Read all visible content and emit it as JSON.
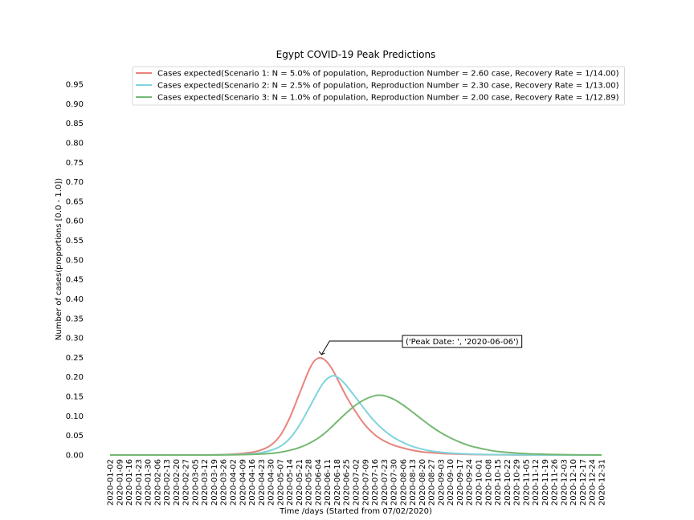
{
  "chart_data": {
    "type": "line",
    "title": "Egypt COVID-19 Peak Predictions",
    "xlabel": "Time /days (Started from 07/02/2020)",
    "ylabel": "Number of cases(proportions [0.0 - 1.0])",
    "ylim": [
      0,
      0.95
    ],
    "yticks": [
      "0.00",
      "0.05",
      "0.10",
      "0.15",
      "0.20",
      "0.25",
      "0.30",
      "0.35",
      "0.40",
      "0.45",
      "0.50",
      "0.55",
      "0.60",
      "0.65",
      "0.70",
      "0.75",
      "0.80",
      "0.85",
      "0.90",
      "0.95"
    ],
    "xlim": [
      "2020-01-02",
      "2020-12-31"
    ],
    "xticks": [
      "2020-01-02",
      "2020-01-09",
      "2020-01-16",
      "2020-01-23",
      "2020-01-30",
      "2020-02-06",
      "2020-02-13",
      "2020-02-20",
      "2020-02-27",
      "2020-03-05",
      "2020-03-12",
      "2020-03-19",
      "2020-03-26",
      "2020-04-02",
      "2020-04-09",
      "2020-04-16",
      "2020-04-23",
      "2020-04-30",
      "2020-05-07",
      "2020-05-14",
      "2020-05-21",
      "2020-05-28",
      "2020-06-04",
      "2020-06-11",
      "2020-06-18",
      "2020-06-25",
      "2020-07-02",
      "2020-07-09",
      "2020-07-16",
      "2020-07-23",
      "2020-07-30",
      "2020-08-06",
      "2020-08-13",
      "2020-08-20",
      "2020-08-27",
      "2020-09-03",
      "2020-09-10",
      "2020-09-17",
      "2020-09-24",
      "2020-10-01",
      "2020-10-08",
      "2020-10-15",
      "2020-10-22",
      "2020-10-29",
      "2020-11-05",
      "2020-11-12",
      "2020-11-19",
      "2020-11-26",
      "2020-12-03",
      "2020-12-10",
      "2020-12-17",
      "2020-12-24",
      "2020-12-31"
    ],
    "grid": false,
    "legend_position": "upper-right",
    "series": [
      {
        "name": "Cases expected(Scenario 1: N = 5.0% of population, Reproduction Number = 2.60 case, Recovery Rate = 1/14.00)",
        "color": "#e8837c",
        "x": [
          "2020-01-02",
          "2020-02-06",
          "2020-03-12",
          "2020-04-02",
          "2020-04-16",
          "2020-04-23",
          "2020-04-30",
          "2020-05-07",
          "2020-05-14",
          "2020-05-21",
          "2020-05-28",
          "2020-06-01",
          "2020-06-04",
          "2020-06-06",
          "2020-06-08",
          "2020-06-11",
          "2020-06-15",
          "2020-06-18",
          "2020-06-25",
          "2020-07-02",
          "2020-07-09",
          "2020-07-16",
          "2020-07-23",
          "2020-07-30",
          "2020-08-06",
          "2020-08-13",
          "2020-08-20",
          "2020-08-27",
          "2020-09-03",
          "2020-09-10",
          "2020-09-24",
          "2020-10-08",
          "2020-10-29",
          "2020-11-26",
          "2020-12-31"
        ],
        "values": [
          0,
          0,
          0,
          0.002,
          0.007,
          0.013,
          0.025,
          0.05,
          0.095,
          0.155,
          0.215,
          0.24,
          0.248,
          0.249,
          0.246,
          0.237,
          0.217,
          0.197,
          0.15,
          0.11,
          0.076,
          0.052,
          0.036,
          0.025,
          0.018,
          0.012,
          0.008,
          0.006,
          0.004,
          0.003,
          0.0015,
          0.0008,
          0.0003,
          0.0001,
          0
        ]
      },
      {
        "name": "Cases expected(Scenario 2: N = 2.5% of population, Reproduction Number = 2.30 case, Recovery Rate = 1/13.00)",
        "color": "#7fd4dc",
        "x": [
          "2020-01-02",
          "2020-02-06",
          "2020-03-12",
          "2020-04-02",
          "2020-04-16",
          "2020-04-23",
          "2020-04-30",
          "2020-05-07",
          "2020-05-14",
          "2020-05-21",
          "2020-05-28",
          "2020-06-04",
          "2020-06-08",
          "2020-06-11",
          "2020-06-14",
          "2020-06-16",
          "2020-06-18",
          "2020-06-21",
          "2020-06-25",
          "2020-07-02",
          "2020-07-09",
          "2020-07-16",
          "2020-07-23",
          "2020-07-30",
          "2020-08-06",
          "2020-08-13",
          "2020-08-20",
          "2020-08-27",
          "2020-09-03",
          "2020-09-10",
          "2020-09-24",
          "2020-10-08",
          "2020-10-29",
          "2020-11-26",
          "2020-12-31"
        ],
        "values": [
          0,
          0,
          0,
          0.001,
          0.003,
          0.006,
          0.012,
          0.022,
          0.042,
          0.075,
          0.118,
          0.163,
          0.185,
          0.196,
          0.202,
          0.203,
          0.2,
          0.193,
          0.178,
          0.147,
          0.115,
          0.086,
          0.063,
          0.045,
          0.032,
          0.022,
          0.015,
          0.01,
          0.007,
          0.005,
          0.0025,
          0.0012,
          0.0005,
          0.0001,
          0
        ]
      },
      {
        "name": "Cases expected(Scenario 3: N = 1.0% of population, Reproduction Number = 2.00 case, Recovery Rate = 1/12.89)",
        "color": "#75b872",
        "x": [
          "2020-01-02",
          "2020-02-06",
          "2020-03-12",
          "2020-04-02",
          "2020-04-16",
          "2020-04-30",
          "2020-05-07",
          "2020-05-14",
          "2020-05-21",
          "2020-05-28",
          "2020-06-04",
          "2020-06-11",
          "2020-06-18",
          "2020-06-25",
          "2020-07-02",
          "2020-07-09",
          "2020-07-16",
          "2020-07-20",
          "2020-07-23",
          "2020-07-30",
          "2020-08-06",
          "2020-08-13",
          "2020-08-20",
          "2020-08-27",
          "2020-09-03",
          "2020-09-10",
          "2020-09-17",
          "2020-09-24",
          "2020-10-01",
          "2020-10-08",
          "2020-10-15",
          "2020-10-29",
          "2020-11-12",
          "2020-11-26",
          "2020-12-10",
          "2020-12-31"
        ],
        "values": [
          0,
          0,
          0,
          0.0005,
          0.0015,
          0.004,
          0.007,
          0.012,
          0.019,
          0.029,
          0.043,
          0.062,
          0.085,
          0.108,
          0.128,
          0.143,
          0.152,
          0.153,
          0.152,
          0.143,
          0.128,
          0.11,
          0.091,
          0.073,
          0.057,
          0.044,
          0.033,
          0.024,
          0.018,
          0.013,
          0.009,
          0.005,
          0.0025,
          0.0012,
          0.0005,
          0
        ]
      }
    ],
    "annotation": {
      "text": "('Peak Date: ', '2020-06-06')",
      "x": "2020-06-06",
      "y": 0.249
    }
  }
}
